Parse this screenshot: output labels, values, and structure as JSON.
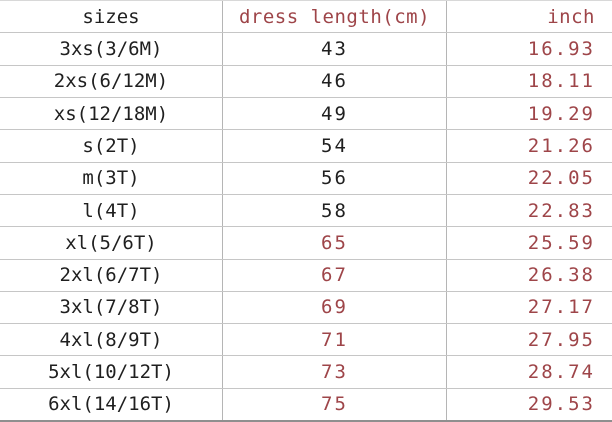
{
  "colors": {
    "accent_red": "#9e4549",
    "text_black": "#1f1f1f",
    "grid_line": "#c6c6c6"
  },
  "table": {
    "headers": [
      {
        "label": "sizes"
      },
      {
        "label": "dress length(cm)"
      },
      {
        "label": "inch"
      }
    ],
    "rows": [
      {
        "size": "3xs(3/6M)",
        "cm": "43",
        "inch": "16.93",
        "cm_red": false
      },
      {
        "size": "2xs(6/12M)",
        "cm": "46",
        "inch": "18.11",
        "cm_red": false
      },
      {
        "size": "xs(12/18M)",
        "cm": "49",
        "inch": "19.29",
        "cm_red": false
      },
      {
        "size": "s(2T)",
        "cm": "54",
        "inch": "21.26",
        "cm_red": false
      },
      {
        "size": "m(3T)",
        "cm": "56",
        "inch": "22.05",
        "cm_red": false
      },
      {
        "size": "l(4T)",
        "cm": "58",
        "inch": "22.83",
        "cm_red": false
      },
      {
        "size": "xl(5/6T)",
        "cm": "65",
        "inch": "25.59",
        "cm_red": true
      },
      {
        "size": "2xl(6/7T)",
        "cm": "67",
        "inch": "26.38",
        "cm_red": true
      },
      {
        "size": "3xl(7/8T)",
        "cm": "69",
        "inch": "27.17",
        "cm_red": true
      },
      {
        "size": "4xl(8/9T)",
        "cm": "71",
        "inch": "27.95",
        "cm_red": true
      },
      {
        "size": "5xl(10/12T)",
        "cm": "73",
        "inch": "28.74",
        "cm_red": true
      },
      {
        "size": "6xl(14/16T)",
        "cm": "75",
        "inch": "29.53",
        "cm_red": true
      }
    ]
  }
}
